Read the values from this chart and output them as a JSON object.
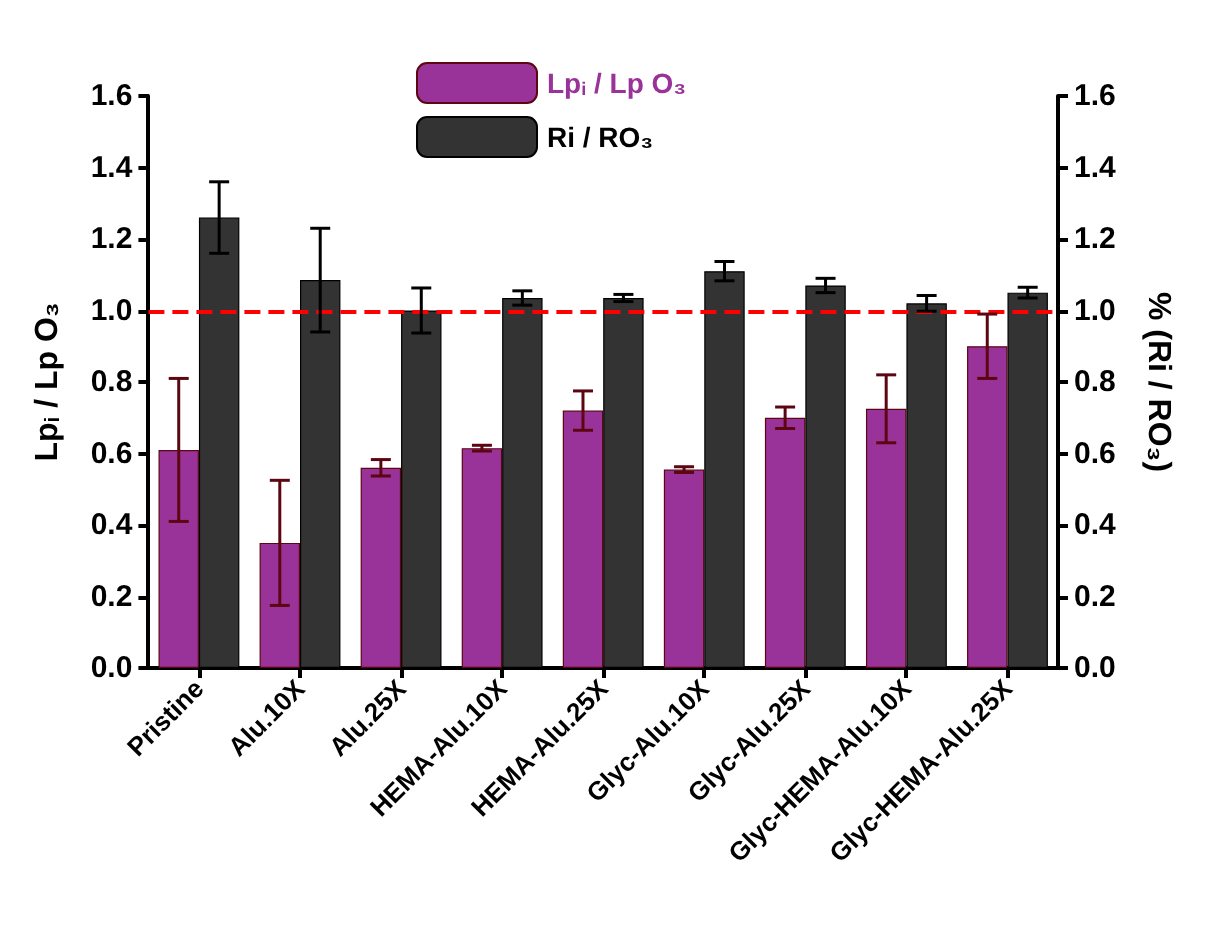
{
  "chart_data": {
    "type": "bar",
    "categories": [
      "Pristine",
      "Alu.10X",
      "Alu.25X",
      "HEMA-Alu.10X",
      "HEMA-Alu.25X",
      "Glyc-Alu.10X",
      "Glyc-Alu.25X",
      "Glyc-HEMA-Alu.10X",
      "Glyc-HEMA-Alu.25X"
    ],
    "series": [
      {
        "name": "Lp$_{i}$ / Lp O₃",
        "color": "#993399",
        "values": [
          0.61,
          0.35,
          0.56,
          0.615,
          0.72,
          0.555,
          0.7,
          0.725,
          0.9
        ],
        "errors": [
          0.2,
          0.175,
          0.023,
          0.008,
          0.055,
          0.008,
          0.03,
          0.095,
          0.09
        ]
      },
      {
        "name": "Ri / RO₃",
        "color": "#333333",
        "values": [
          1.26,
          1.085,
          1.0,
          1.035,
          1.035,
          1.11,
          1.07,
          1.02,
          1.05
        ],
        "errors": [
          0.1,
          0.145,
          0.063,
          0.02,
          0.01,
          0.027,
          0.02,
          0.022,
          0.015
        ]
      }
    ],
    "ylabel": "Lp$_{i}$ / Lp O₃",
    "y2label": "% (Ri / RO₃)",
    "ylim": [
      0,
      1.6
    ],
    "yticks": [
      {
        "value": 0,
        "label": "0.0"
      },
      {
        "value": 0.2,
        "label": "0.2"
      },
      {
        "value": 0.4,
        "label": "0.4"
      },
      {
        "value": 0.6,
        "label": "0.6"
      },
      {
        "value": 0.8,
        "label": "0.8"
      },
      {
        "value": 1,
        "label": "1.0"
      },
      {
        "value": 1.2,
        "label": "1.2"
      },
      {
        "value": 1.4,
        "label": "1.4"
      },
      {
        "value": 1.6,
        "label": "1.6"
      }
    ],
    "y2lim": [
      0,
      1.6
    ],
    "y2ticks": [
      {
        "value": 0,
        "label": "0.0"
      },
      {
        "value": 0.2,
        "label": "0.2"
      },
      {
        "value": 0.4,
        "label": "0.4"
      },
      {
        "value": 0.6,
        "label": "0.6"
      },
      {
        "value": 0.8,
        "label": "0.8"
      },
      {
        "value": 1,
        "label": "1.0"
      },
      {
        "value": 1.2,
        "label": "1.2"
      },
      {
        "value": 1.4,
        "label": "1.4"
      },
      {
        "value": 1.6,
        "label": "1.6"
      }
    ],
    "ref_lines": [
      {
        "axis": "y",
        "value": 1.0,
        "color": "#ff0000",
        "line_style": "dashed"
      }
    ],
    "grid": false,
    "legend": "top"
  }
}
